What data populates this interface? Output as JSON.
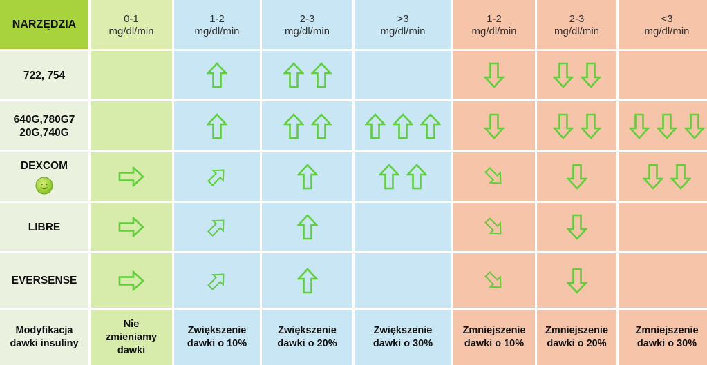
{
  "header": {
    "tools_label": "NARZĘDZIA",
    "columns": [
      {
        "range": "0-1",
        "unit": "mg/dl/min"
      },
      {
        "range": "1-2",
        "unit": "mg/dl/min"
      },
      {
        "range": "2-3",
        "unit": "mg/dl/min"
      },
      {
        "range": ">3",
        "unit": "mg/dl/min"
      },
      {
        "range": "1-2",
        "unit": "mg/dl/min"
      },
      {
        "range": "2-3",
        "unit": "mg/dl/min"
      },
      {
        "range": "<3",
        "unit": "mg/dl/min"
      }
    ]
  },
  "rows": [
    {
      "label": "722, 754",
      "label_line2": "",
      "label_line3": "",
      "cells": [
        [],
        [
          "up"
        ],
        [
          "up",
          "up"
        ],
        [],
        [
          "down"
        ],
        [
          "down",
          "down"
        ],
        []
      ]
    },
    {
      "label": "640G,780G7",
      "label_line2": "20G,740G",
      "label_line3": "",
      "cells": [
        [],
        [
          "up"
        ],
        [
          "up",
          "up"
        ],
        [
          "up",
          "up",
          "up"
        ],
        [
          "down"
        ],
        [
          "down",
          "down"
        ],
        [
          "down",
          "down",
          "down"
        ]
      ]
    },
    {
      "label": "DEXCOM",
      "label_line2": "",
      "label_line3": "",
      "smiley": true,
      "cells": [
        [
          "right"
        ],
        [
          "up-right"
        ],
        [
          "up"
        ],
        [
          "up",
          "up"
        ],
        [
          "down-right"
        ],
        [
          "down"
        ],
        [
          "down",
          "down"
        ]
      ]
    },
    {
      "label": "LIBRE",
      "label_line2": "",
      "label_line3": "",
      "cells": [
        [
          "right"
        ],
        [
          "up-right"
        ],
        [
          "up"
        ],
        [],
        [
          "down-right"
        ],
        [
          "down"
        ],
        []
      ]
    },
    {
      "label": "EVERSENSE",
      "label_line2": "",
      "label_line3": "",
      "cells": [
        [
          "right"
        ],
        [
          "up-right"
        ],
        [
          "up"
        ],
        [],
        [
          "down-right"
        ],
        [
          "down"
        ],
        []
      ]
    }
  ],
  "footer": {
    "label": [
      "Modyfikacja",
      "dawki insuliny"
    ],
    "cells": [
      [
        "Nie",
        "zmieniamy",
        "dawki"
      ],
      [
        "Zwiększenie",
        "dawki o 10%"
      ],
      [
        "Zwiększenie",
        "dawki o 20%"
      ],
      [
        "Zwiększenie",
        "dawki o 30%"
      ],
      [
        "Zmniejszenie",
        "dawki o 10%"
      ],
      [
        "Zmniejszenie",
        "dawki o 20%"
      ],
      [
        "Zmniejszenie",
        "dawki o 30%"
      ]
    ]
  },
  "colors": {
    "tools_header": "#a9d33c",
    "green_zone": "#d7ebaa",
    "blue_zone": "#c8e6f4",
    "orange_zone": "#f6c4a8",
    "label_column": "#eaf1df",
    "arrow_stroke": "#5fcf3a"
  }
}
